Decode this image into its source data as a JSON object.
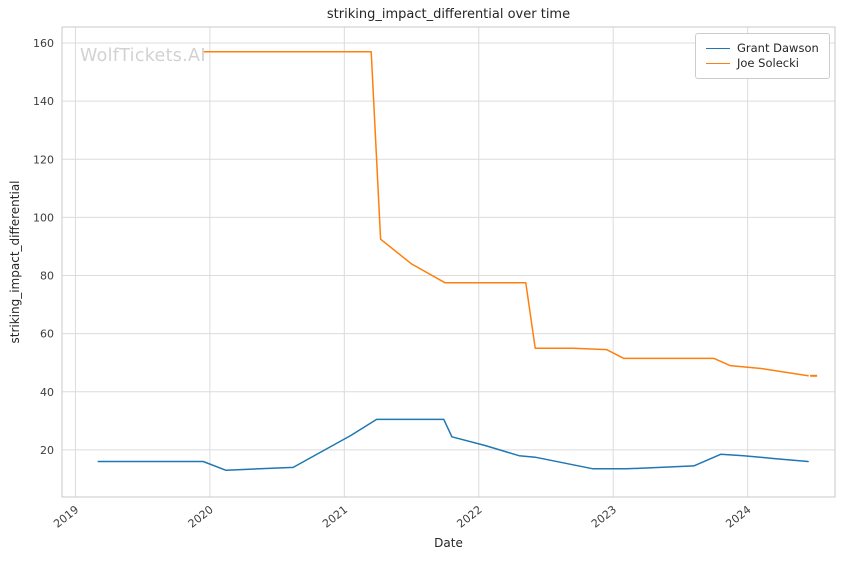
{
  "watermark": "WolfTickets.AI",
  "colors": {
    "grid": "#dcdcdc",
    "spine": "#c9c9c9",
    "tick_text": "#3d3d3d",
    "blue": "#1f77b4",
    "orange": "#ff7f0e",
    "watermark": "#d2d2d2"
  },
  "chart_data": {
    "type": "line",
    "title": "striking_impact_differential over time",
    "xlabel": "Date",
    "ylabel": "striking_impact_differential",
    "xlim": [
      2018.9,
      2024.65
    ],
    "ylim": [
      3.8,
      165.5
    ],
    "x_ticks": [
      2019,
      2020,
      2021,
      2022,
      2023,
      2024
    ],
    "y_ticks": [
      20,
      40,
      60,
      80,
      100,
      120,
      140,
      160
    ],
    "grid": true,
    "legend_position": "upper right",
    "series": [
      {
        "name": "Grant Dawson",
        "color": "#1f77b4",
        "x": [
          2019.17,
          2019.6,
          2019.95,
          2020.12,
          2020.37,
          2020.62,
          2021.05,
          2021.24,
          2021.5,
          2021.74,
          2021.8,
          2022.05,
          2022.3,
          2022.42,
          2022.85,
          2023.1,
          2023.35,
          2023.6,
          2023.8,
          2023.97,
          2024.2,
          2024.45
        ],
        "y": [
          16,
          16,
          16,
          13,
          13.5,
          14,
          25,
          30.5,
          30.5,
          30.5,
          24.5,
          21.5,
          18,
          17.5,
          13.5,
          13.5,
          14,
          14.5,
          18.5,
          18,
          17,
          16
        ],
        "end_marker": false
      },
      {
        "name": "Joe Solecki",
        "color": "#ff7f0e",
        "x": [
          2019.95,
          2021.2,
          2021.27,
          2021.5,
          2021.75,
          2022.05,
          2022.35,
          2022.42,
          2022.7,
          2022.95,
          2023.08,
          2023.45,
          2023.75,
          2023.87,
          2024.1,
          2024.45
        ],
        "y": [
          157,
          157,
          92.5,
          84,
          77.5,
          77.5,
          77.5,
          55,
          55,
          54.5,
          51.5,
          51.5,
          51.5,
          49,
          48,
          45.5
        ],
        "end_marker": true
      }
    ]
  }
}
